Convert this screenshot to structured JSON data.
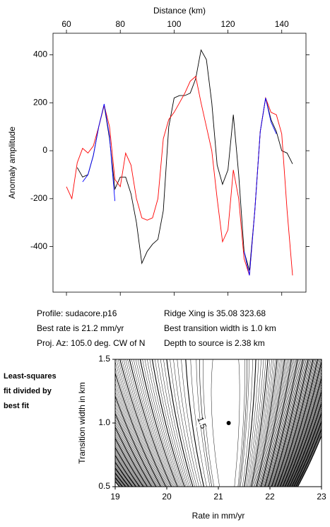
{
  "chart_data": [
    {
      "type": "line",
      "title": "Distance (km)",
      "y_label": "Anomaly amplitude",
      "x": [
        60,
        62,
        64,
        66,
        68,
        70,
        72,
        74,
        76,
        78,
        80,
        82,
        84,
        86,
        88,
        90,
        92,
        94,
        96,
        98,
        100,
        102,
        104,
        106,
        108,
        110,
        112,
        114,
        116,
        118,
        120,
        122,
        124,
        126,
        128,
        130,
        132,
        134,
        136,
        138,
        140,
        142,
        144
      ],
      "series": [
        {
          "color": "#000000",
          "values": [
            null,
            null,
            -70,
            -110,
            -100,
            -20,
            100,
            190,
            50,
            -160,
            -110,
            -110,
            -180,
            -300,
            -470,
            -420,
            -390,
            -370,
            -250,
            100,
            220,
            230,
            230,
            240,
            300,
            420,
            380,
            200,
            -60,
            -140,
            -80,
            150,
            -100,
            -420,
            -500,
            -250,
            80,
            220,
            130,
            80,
            0,
            -10,
            -55
          ]
        },
        {
          "color": "#ff0000",
          "values": [
            -150,
            -200,
            -50,
            10,
            -10,
            20,
            100,
            190,
            100,
            -120,
            -150,
            -10,
            -60,
            -200,
            -280,
            -290,
            -280,
            -200,
            50,
            130,
            160,
            200,
            240,
            290,
            310,
            200,
            100,
            0,
            -200,
            -380,
            -330,
            -80,
            -200,
            -450,
            -520,
            -250,
            80,
            220,
            160,
            150,
            70,
            -250,
            -520
          ]
        },
        {
          "color": "#0000ff",
          "values": [
            null,
            null,
            null,
            -130,
            -100,
            -20,
            100,
            195,
            60,
            -210,
            null,
            null,
            null,
            null,
            null,
            null,
            null,
            null,
            null,
            null,
            null,
            null,
            null,
            null,
            null,
            null,
            null,
            null,
            null,
            null,
            null,
            null,
            null,
            -420,
            -520,
            -250,
            80,
            220,
            120,
            70,
            null,
            null,
            null
          ]
        }
      ],
      "xlim": [
        55,
        149
      ],
      "xticks": [
        60,
        80,
        100,
        120,
        140
      ],
      "ylim": [
        -590,
        490
      ],
      "yticks": [
        -400,
        -200,
        0,
        200,
        400
      ]
    },
    {
      "type": "contour",
      "x_label": "Rate in mm/yr",
      "y_label": "Transition width in km",
      "xlim": [
        19,
        23
      ],
      "xticks": [
        19,
        20,
        21,
        22,
        23
      ],
      "ylim": [
        0.5,
        1.5
      ],
      "yticks": [
        0.5,
        {
          "value": 1,
          "label": "1.0"
        },
        1.5
      ],
      "best_fit_point": {
        "x": 21.2,
        "y": 1
      },
      "labeled_contour_level": 1.5
    }
  ],
  "info": [
    [
      "Profile: sudacore.p16",
      "Ridge Xing is 35.08 323.68"
    ],
    [
      "Best rate is 21.2 mm/yr",
      "Best transition width is 1.0 km"
    ],
    [
      "Proj. Az: 105.0 deg. CW of N",
      "Depth to source is   2.38 km"
    ]
  ],
  "side_note": [
    "Least-squares",
    "fit divided by",
    "best fit"
  ]
}
